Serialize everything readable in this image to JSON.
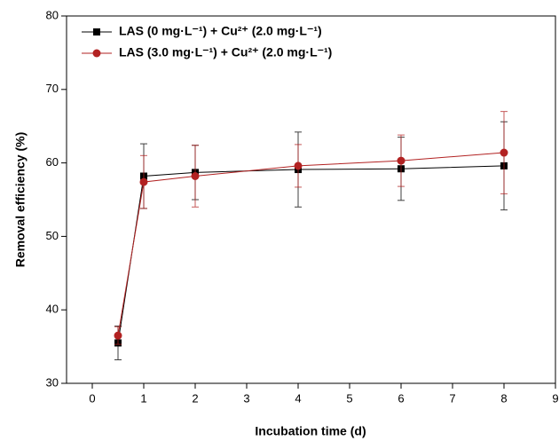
{
  "chart_data": {
    "type": "line",
    "x_label": "Incubation time (d)",
    "y_label": "Removal efficiency (%)",
    "x": [
      0.5,
      1,
      2,
      4,
      6,
      8
    ],
    "series": [
      {
        "name": "LAS (0   mg·L⁻¹) + Cu²⁺ (2.0 mg·L⁻¹)",
        "color": "#000000",
        "marker": "square",
        "values": [
          35.5,
          58.2,
          58.7,
          59.1,
          59.2,
          59.6
        ],
        "errors": [
          2.3,
          4.4,
          3.7,
          5.1,
          4.3,
          6.0
        ]
      },
      {
        "name": "LAS (3.0 mg·L⁻¹) + Cu²⁺ (2.0 mg·L⁻¹)",
        "color": "#b22222",
        "marker": "circle",
        "values": [
          36.5,
          57.4,
          58.2,
          59.6,
          60.3,
          61.4
        ],
        "errors": [
          1.2,
          3.6,
          4.2,
          2.9,
          3.5,
          5.6
        ]
      }
    ],
    "xlim": [
      -0.5,
      9
    ],
    "xticks": [
      0,
      1,
      2,
      3,
      4,
      5,
      6,
      7,
      8,
      9
    ],
    "ylim": [
      30,
      80
    ],
    "yticks": [
      30,
      40,
      50,
      60,
      70,
      80
    ],
    "legend": "upper left"
  }
}
